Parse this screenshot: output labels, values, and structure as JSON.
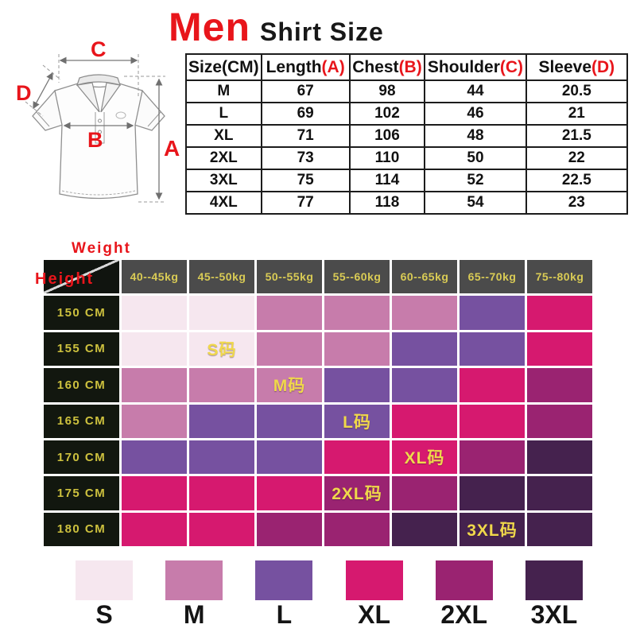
{
  "title": {
    "brand": "Men",
    "product": "Shirt Size"
  },
  "diagram": {
    "labels": {
      "length": "A",
      "chest": "B",
      "shoulder": "C",
      "sleeve": "D"
    }
  },
  "size_table": {
    "columns": [
      {
        "text": "Size(CM)",
        "mark": ""
      },
      {
        "text": "Length",
        "mark": "(A)"
      },
      {
        "text": "Chest",
        "mark": "(B)"
      },
      {
        "text": "Shoulder",
        "mark": "(C)"
      },
      {
        "text": "Sleeve",
        "mark": "(D)"
      }
    ],
    "rows": [
      [
        "M",
        "67",
        "98",
        "44",
        "20.5"
      ],
      [
        "L",
        "69",
        "102",
        "46",
        "21"
      ],
      [
        "XL",
        "71",
        "106",
        "48",
        "21.5"
      ],
      [
        "2XL",
        "73",
        "110",
        "50",
        "22"
      ],
      [
        "3XL",
        "75",
        "114",
        "52",
        "22.5"
      ],
      [
        "4XL",
        "77",
        "118",
        "54",
        "23"
      ]
    ]
  },
  "matrix": {
    "axis_labels": {
      "top": "Weight",
      "side": "Height"
    },
    "weight_columns": [
      "40--45kg",
      "45--50kg",
      "50--55kg",
      "55--60kg",
      "60--65kg",
      "65--70kg",
      "75--80kg"
    ],
    "height_rows": [
      "150 CM",
      "155 CM",
      "160 CM",
      "165 CM",
      "170 CM",
      "175 CM",
      "180 CM"
    ],
    "cells": [
      [
        "S",
        "S",
        "M",
        "M",
        "M",
        "L",
        "XL"
      ],
      [
        "S",
        "S",
        "M",
        "M",
        "L",
        "L",
        "XL"
      ],
      [
        "M",
        "M",
        "M",
        "L",
        "L",
        "XL",
        "2XL"
      ],
      [
        "M",
        "L",
        "L",
        "L",
        "XL",
        "XL",
        "2XL"
      ],
      [
        "L",
        "L",
        "L",
        "XL",
        "XL",
        "2XL",
        "3XL"
      ],
      [
        "XL",
        "XL",
        "XL",
        "2XL",
        "2XL",
        "3XL",
        "3XL"
      ],
      [
        "XL",
        "XL",
        "2XL",
        "2XL",
        "3XL",
        "3XL",
        "3XL"
      ]
    ],
    "cell_labels": [
      {
        "row": 1,
        "col": 1,
        "text": "S码"
      },
      {
        "row": 2,
        "col": 2,
        "text": "M码"
      },
      {
        "row": 3,
        "col": 3,
        "text": "L码"
      },
      {
        "row": 4,
        "col": 4,
        "text": "XL码"
      },
      {
        "row": 5,
        "col": 3,
        "text": "2XL码"
      },
      {
        "row": 6,
        "col": 5,
        "text": "3XL码"
      }
    ]
  },
  "legend": [
    {
      "size": "S",
      "color": "#f6e7ef"
    },
    {
      "size": "M",
      "color": "#c77cab"
    },
    {
      "size": "L",
      "color": "#7651a0"
    },
    {
      "size": "XL",
      "color": "#d6196f"
    },
    {
      "size": "2XL",
      "color": "#9a2371"
    },
    {
      "size": "3XL",
      "color": "#45224e"
    }
  ],
  "colors": {
    "accent_red": "#e8151b",
    "size_S": "#f6e7ef",
    "size_M": "#c77cab",
    "size_L": "#7651a0",
    "size_XL": "#d6196f",
    "size_2XL": "#9a2371",
    "size_3XL": "#45224e",
    "matrix_header_bg": "#4b4b4b",
    "matrix_header_text": "#d9cb55",
    "matrix_row_header_bg": "#12170f",
    "matrix_row_header_text": "#cdc13e",
    "cell_label_yellow": "#f0d84b"
  },
  "chart_data": [
    {
      "type": "table",
      "title": "Men Shirt Size",
      "columns": [
        "Size(CM)",
        "Length(A)",
        "Chest(B)",
        "Shoulder(C)",
        "Sleeve(D)"
      ],
      "rows": [
        [
          "M",
          67,
          98,
          44,
          20.5
        ],
        [
          "L",
          69,
          102,
          46,
          21
        ],
        [
          "XL",
          71,
          106,
          48,
          21.5
        ],
        [
          "2XL",
          73,
          110,
          50,
          22
        ],
        [
          "3XL",
          75,
          114,
          52,
          22.5
        ],
        [
          "4XL",
          77,
          118,
          54,
          23
        ]
      ]
    },
    {
      "type": "heatmap",
      "xlabel": "Weight",
      "ylabel": "Height",
      "x": [
        "40--45kg",
        "45--50kg",
        "50--55kg",
        "55--60kg",
        "60--65kg",
        "65--70kg",
        "75--80kg"
      ],
      "y": [
        "150 CM",
        "155 CM",
        "160 CM",
        "165 CM",
        "170 CM",
        "175 CM",
        "180 CM"
      ],
      "values": [
        [
          "S",
          "S",
          "M",
          "M",
          "M",
          "L",
          "XL"
        ],
        [
          "S",
          "S",
          "M",
          "M",
          "L",
          "L",
          "XL"
        ],
        [
          "M",
          "M",
          "M",
          "L",
          "L",
          "XL",
          "2XL"
        ],
        [
          "M",
          "L",
          "L",
          "L",
          "XL",
          "XL",
          "2XL"
        ],
        [
          "L",
          "L",
          "L",
          "XL",
          "XL",
          "2XL",
          "3XL"
        ],
        [
          "XL",
          "XL",
          "XL",
          "2XL",
          "2XL",
          "3XL",
          "3XL"
        ],
        [
          "XL",
          "XL",
          "2XL",
          "2XL",
          "3XL",
          "3XL",
          "3XL"
        ]
      ],
      "annotations": [
        {
          "row": 1,
          "col": 1,
          "text": "S码"
        },
        {
          "row": 2,
          "col": 2,
          "text": "M码"
        },
        {
          "row": 3,
          "col": 3,
          "text": "L码"
        },
        {
          "row": 4,
          "col": 4,
          "text": "XL码"
        },
        {
          "row": 5,
          "col": 3,
          "text": "2XL码"
        },
        {
          "row": 6,
          "col": 5,
          "text": "3XL码"
        }
      ],
      "legend_entries": [
        "S",
        "M",
        "L",
        "XL",
        "2XL",
        "3XL"
      ],
      "legend_position": "bottom"
    }
  ]
}
